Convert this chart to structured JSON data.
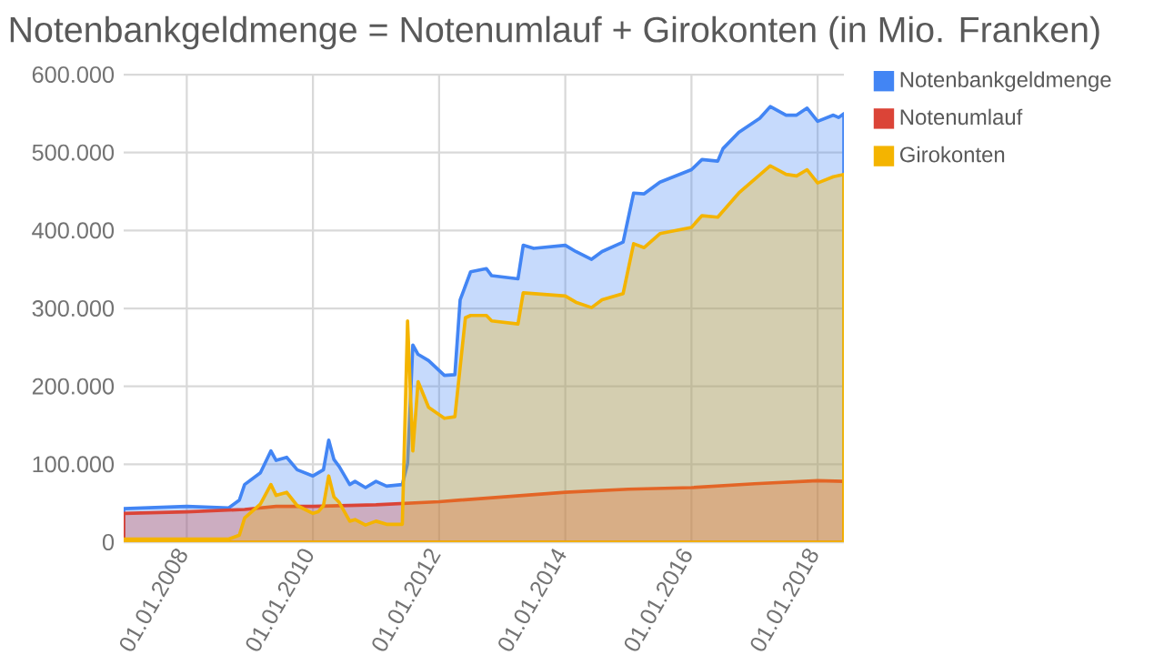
{
  "chart_data": {
    "type": "area",
    "title": "Notenbankgeldmenge = Notenumlauf + Girokonten (in Mio. Franken)",
    "xlim": [
      "2007-01",
      "2018-06"
    ],
    "xticks": [
      {
        "value": "2008-01-01",
        "label": "01.01.2008"
      },
      {
        "value": "2010-01-01",
        "label": "01.01.2010"
      },
      {
        "value": "2012-01-01",
        "label": "01.01.2012"
      },
      {
        "value": "2014-01-01",
        "label": "01.01.2014"
      },
      {
        "value": "2016-01-01",
        "label": "01.01.2016"
      },
      {
        "value": "2018-01-01",
        "label": "01.01.2018"
      }
    ],
    "ylim": [
      0,
      600000
    ],
    "yticks": [
      0,
      {
        "value": 100000,
        "label": "100.000"
      },
      {
        "value": 200000,
        "label": "200.000"
      },
      {
        "value": 300000,
        "label": "300.000"
      },
      {
        "value": 400000,
        "label": "400.000"
      },
      {
        "value": 500000,
        "label": "500.000"
      },
      {
        "value": 600000,
        "label": "600.000"
      }
    ],
    "grid": true,
    "legend": "top right",
    "series": [
      {
        "name": "Notenbankgeldmenge",
        "color": "#4285f4",
        "x": [
          "2007-01",
          "2008-01",
          "2008-09",
          "2008-11",
          "2008-12",
          "2009-03",
          "2009-05",
          "2009-06",
          "2009-08",
          "2009-10",
          "2010-01",
          "2010-02",
          "2010-03",
          "2010-04",
          "2010-05",
          "2010-06",
          "2010-08",
          "2010-09",
          "2010-11",
          "2011-01",
          "2011-03",
          "2011-06",
          "2011-07",
          "2011-08",
          "2011-09",
          "2011-11",
          "2012-02",
          "2012-04",
          "2012-05",
          "2012-07",
          "2012-10",
          "2012-11",
          "2013-04",
          "2013-05",
          "2013-07",
          "2014-01",
          "2014-03",
          "2014-06",
          "2014-08",
          "2014-12",
          "2015-02",
          "2015-04",
          "2015-07",
          "2016-01",
          "2016-03",
          "2016-06",
          "2016-07",
          "2016-10",
          "2017-02",
          "2017-04",
          "2017-07",
          "2017-09",
          "2017-11",
          "2018-01",
          "2018-04",
          "2018-05",
          "2018-06"
        ],
        "values": [
          43000,
          46000,
          44000,
          54000,
          74000,
          89000,
          117000,
          105000,
          109000,
          93000,
          85000,
          89000,
          93000,
          131000,
          106000,
          97000,
          74000,
          78000,
          70000,
          78000,
          72000,
          74000,
          101000,
          253000,
          241000,
          233000,
          214000,
          215000,
          311000,
          347000,
          351000,
          342000,
          338000,
          381000,
          377000,
          381000,
          373000,
          363000,
          373000,
          385000,
          448000,
          447000,
          462000,
          478000,
          491000,
          489000,
          505000,
          526000,
          544000,
          559000,
          548000,
          548000,
          557000,
          540000,
          548000,
          545000,
          550000
        ]
      },
      {
        "name": "Notenumlauf",
        "color": "#db4437",
        "x": [
          "2007-01",
          "2008-01",
          "2008-12",
          "2009-06",
          "2010-01",
          "2011-01",
          "2012-01",
          "2013-01",
          "2014-01",
          "2015-01",
          "2016-01",
          "2017-01",
          "2018-01",
          "2018-06"
        ],
        "values": [
          37000,
          39000,
          42000,
          46000,
          46000,
          48000,
          52000,
          58000,
          64000,
          68000,
          70000,
          75000,
          79000,
          78000
        ]
      },
      {
        "name": "Girokonten",
        "color": "#f4b400",
        "x": [
          "2007-01",
          "2008-01",
          "2008-09",
          "2008-11",
          "2008-12",
          "2009-03",
          "2009-05",
          "2009-06",
          "2009-08",
          "2009-10",
          "2010-01",
          "2010-02",
          "2010-03",
          "2010-04",
          "2010-05",
          "2010-06",
          "2010-08",
          "2010-09",
          "2010-11",
          "2011-01",
          "2011-03",
          "2011-06",
          "2011-07",
          "2011-08",
          "2011-09",
          "2011-11",
          "2012-02",
          "2012-04",
          "2012-06",
          "2012-07",
          "2012-10",
          "2012-11",
          "2013-04",
          "2013-05",
          "2014-01",
          "2014-03",
          "2014-06",
          "2014-08",
          "2014-12",
          "2015-02",
          "2015-04",
          "2015-07",
          "2016-01",
          "2016-03",
          "2016-06",
          "2016-10",
          "2017-04",
          "2017-07",
          "2017-09",
          "2017-11",
          "2018-01",
          "2018-04",
          "2018-06"
        ],
        "values": [
          4000,
          4000,
          4000,
          9000,
          31000,
          49000,
          74000,
          60000,
          64000,
          47000,
          37000,
          39000,
          47000,
          85000,
          58000,
          51000,
          27000,
          29000,
          22000,
          27000,
          23000,
          23000,
          284000,
          117000,
          206000,
          173000,
          159000,
          161000,
          288000,
          291000,
          291000,
          284000,
          280000,
          320000,
          316000,
          308000,
          301000,
          311000,
          319000,
          383000,
          378000,
          396000,
          404000,
          419000,
          417000,
          448000,
          483000,
          472000,
          470000,
          478000,
          461000,
          469000,
          472000
        ]
      }
    ]
  }
}
